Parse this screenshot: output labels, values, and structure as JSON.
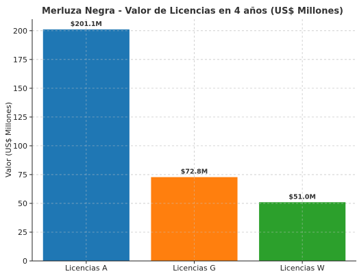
{
  "chart_data": {
    "type": "bar",
    "title": "Merluza Negra - Valor de Licencias en 4 años (US$ Millones)",
    "xlabel": "",
    "ylabel": "Valor (US$ Millones)",
    "categories": [
      "Licencias A",
      "Licencias G",
      "Licencias W"
    ],
    "values": [
      201.1,
      72.8,
      51.0
    ],
    "data_labels": [
      "$201.1M",
      "$72.8M",
      "$51.0M"
    ],
    "colors": [
      "#1f77b4",
      "#ff7f0e",
      "#2ca02c"
    ],
    "ylim": [
      0,
      210
    ],
    "yticks": [
      0,
      25,
      50,
      75,
      100,
      125,
      150,
      175,
      200
    ],
    "grid": true,
    "legend": "none"
  }
}
